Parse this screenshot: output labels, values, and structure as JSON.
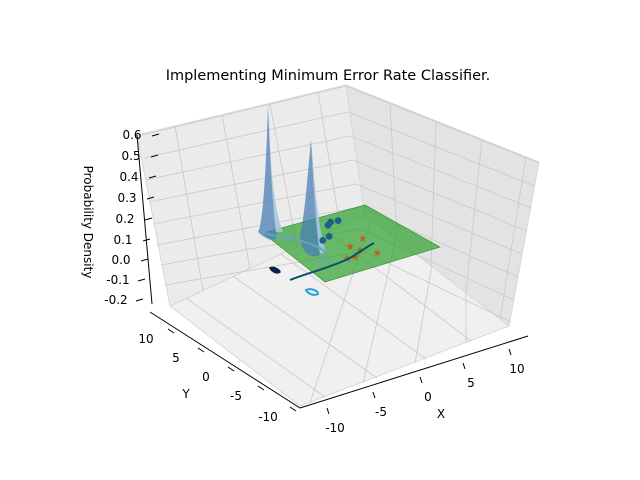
{
  "chart_data": {
    "type": "surface3d",
    "title": "Implementing Minimum Error Rate Classifier.",
    "xlabel": "X",
    "ylabel": "Y",
    "zlabel": "Probability Density",
    "xlim": [
      -12,
      12
    ],
    "ylim": [
      -12,
      12
    ],
    "zlim": [
      -0.25,
      0.6
    ],
    "x_ticks": [
      "-10",
      "-5",
      "0",
      "5",
      "10"
    ],
    "y_ticks": [
      "-10",
      "-5",
      "0",
      "5",
      "10"
    ],
    "z_ticks": [
      "-0.2",
      "-0.1",
      "0.0",
      "0.1",
      "0.2",
      "0.3",
      "0.4",
      "0.5",
      "0.6"
    ],
    "grid": true,
    "surfaces": [
      {
        "peak": 0.58,
        "center": [
          -3,
          3
        ]
      },
      {
        "peak": 0.38,
        "center": [
          1,
          4
        ]
      }
    ],
    "decision_plane_z": 0.1,
    "class1_points": [
      [
        0,
        3,
        0.1
      ],
      [
        1,
        3.5,
        0.1
      ],
      [
        2,
        6,
        0.1
      ],
      [
        3,
        6,
        0.1
      ],
      [
        1.5,
        5.5,
        0.1
      ]
    ],
    "class2_points": [
      [
        2,
        -1,
        0.1
      ],
      [
        3,
        -1,
        0.1
      ],
      [
        4,
        0,
        0.1
      ],
      [
        6,
        -1,
        0.1
      ],
      [
        5,
        2,
        0.1
      ],
      [
        3,
        1,
        0.1
      ]
    ],
    "colors": {
      "surface": "#4a7fb5",
      "plane": "#2ca02c",
      "class1": "#1f5f8b",
      "class2": "#b5651d",
      "boundary": "#0b4f6c"
    }
  }
}
